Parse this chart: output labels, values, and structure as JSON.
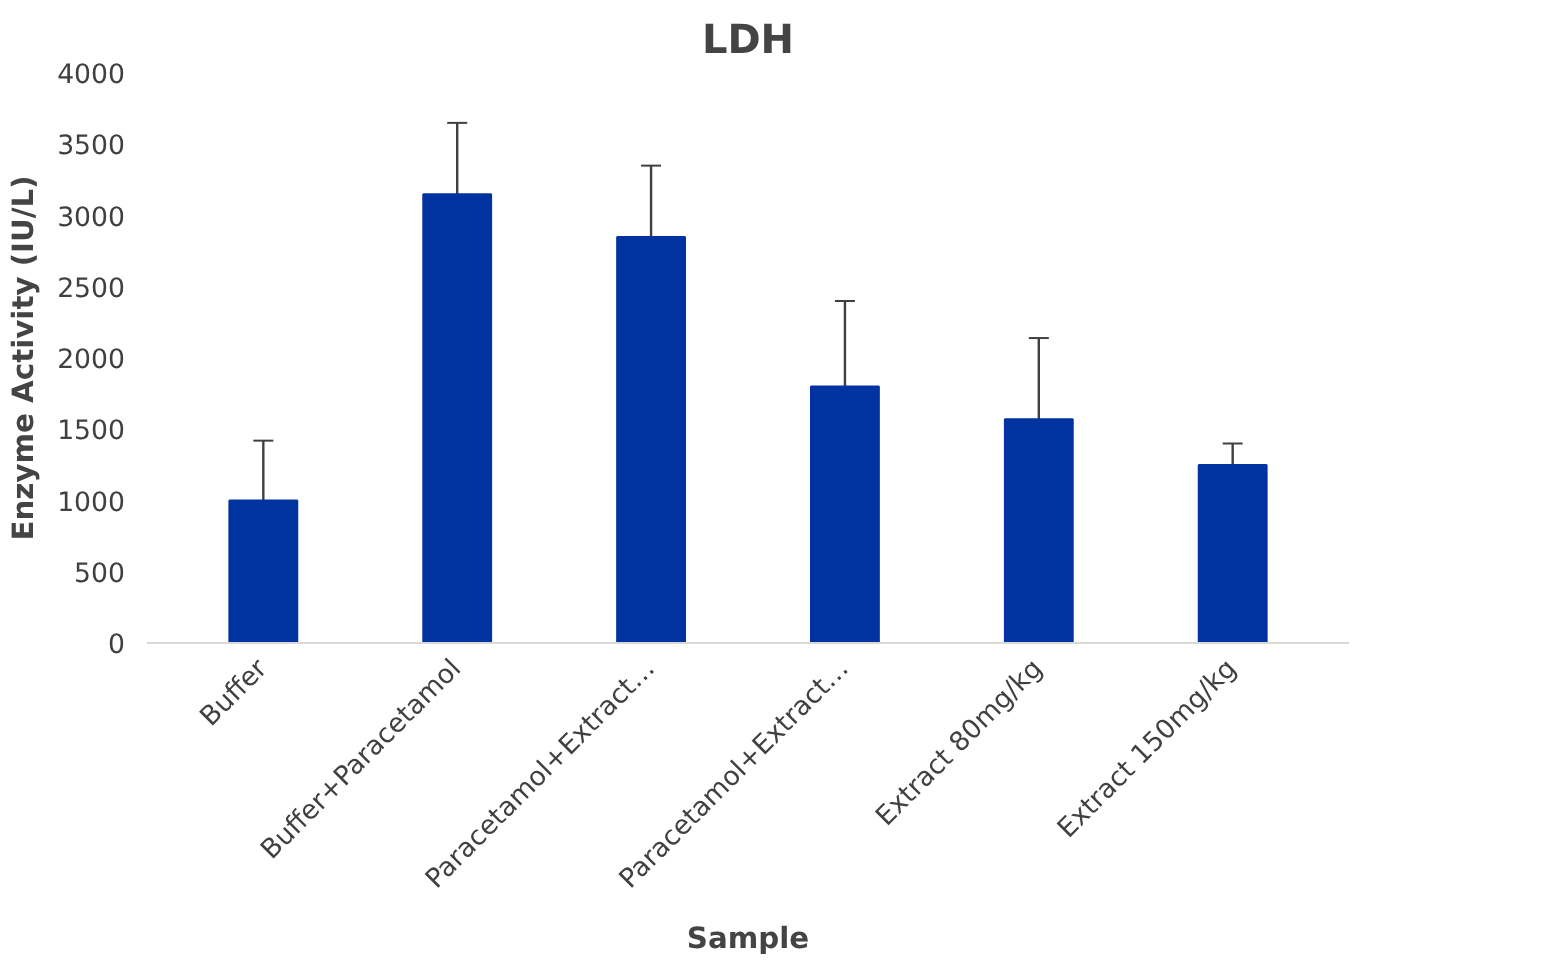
{
  "chart_data": {
    "type": "bar",
    "title": "LDH",
    "xlabel": "Sample",
    "ylabel": "Enzyme Activity (IU/L)",
    "categories": [
      "Buffer",
      "Buffer+Paracetamol",
      "Paracetamol+Extract…",
      "Paracetamol+Extract…",
      "Extract 80mg/kg",
      "Extract 150mg/kg"
    ],
    "values": [
      1000,
      3150,
      2850,
      1800,
      1570,
      1250
    ],
    "errors": [
      420,
      500,
      500,
      600,
      570,
      150
    ],
    "color": "#0033a0",
    "ylim": [
      0,
      4000
    ],
    "yticks": [
      0,
      500,
      1000,
      1500,
      2000,
      2500,
      3000,
      3500,
      4000
    ],
    "grid": false
  }
}
